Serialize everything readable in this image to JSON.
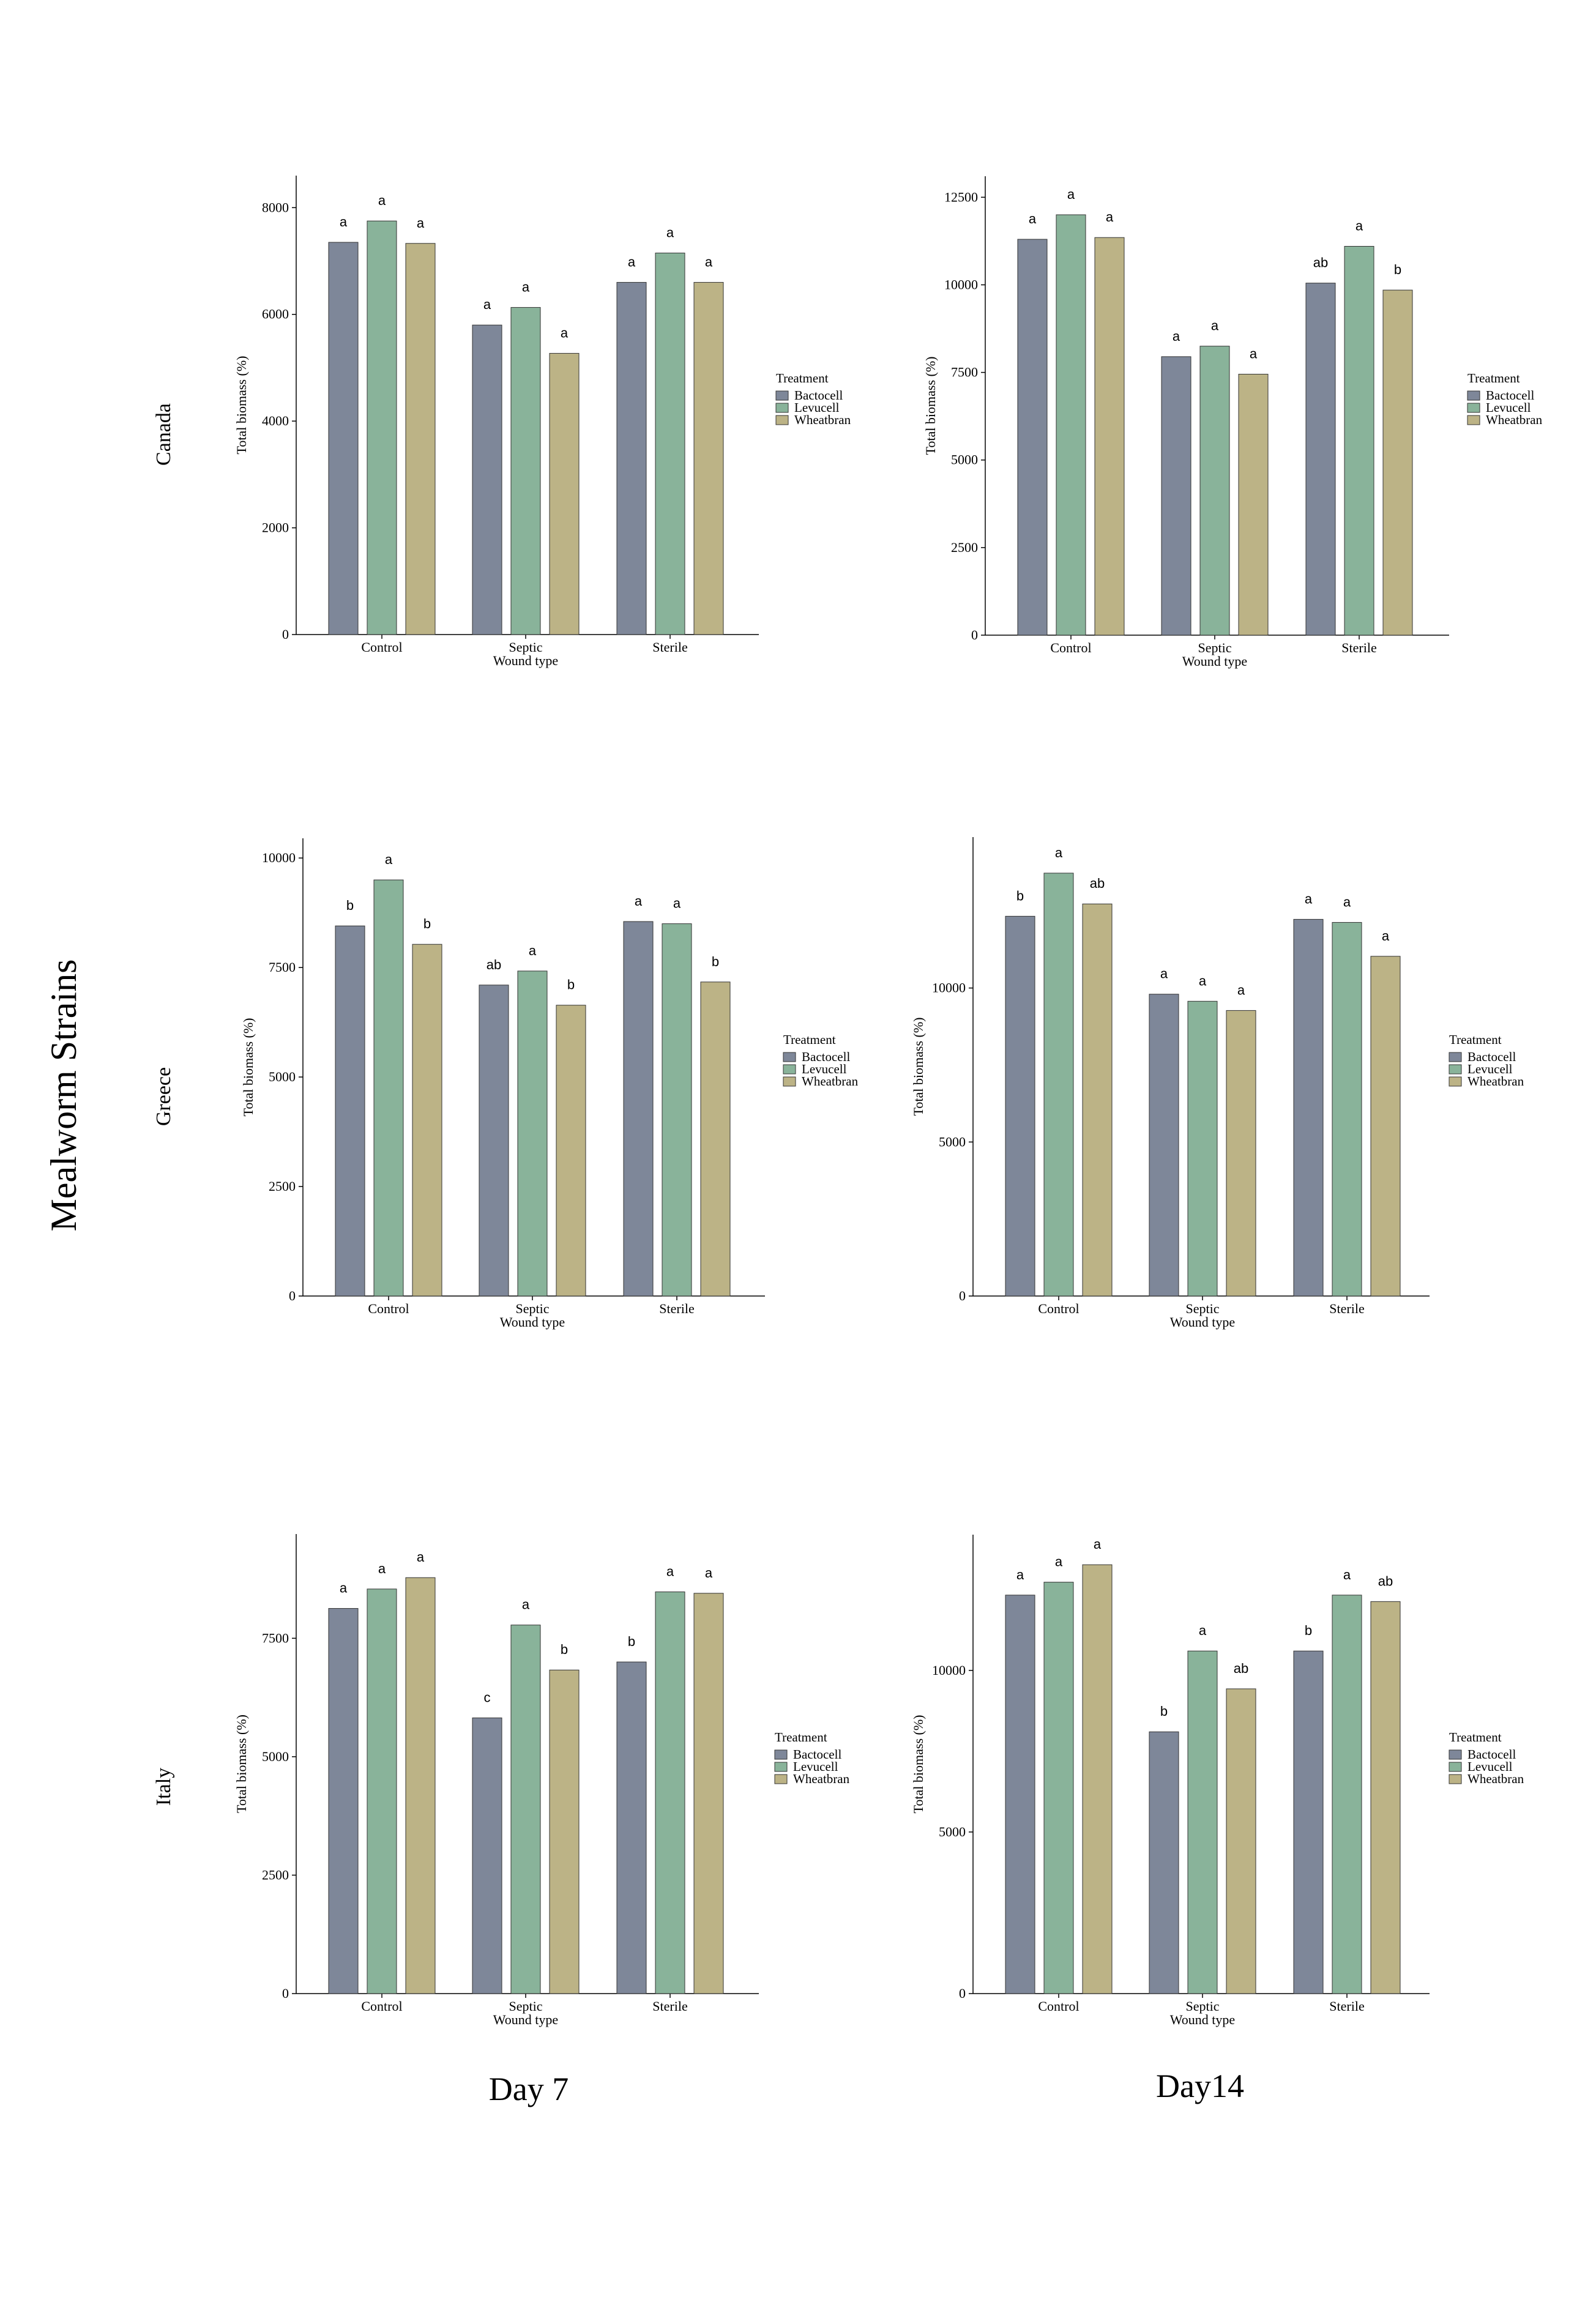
{
  "figure": {
    "y_title": "Mealworm Strains",
    "column_titles": [
      "Day 7",
      "Day14"
    ],
    "row_titles": [
      "Canada",
      "Greece",
      "Italy"
    ]
  },
  "colors": {
    "Bactocell": "#7e8799",
    "Levucell": "#89b39a",
    "Wheatbran": "#bcb386"
  },
  "chart_data": [
    {
      "type": "bar",
      "row": "Canada",
      "column": "Day 7",
      "categories": [
        "Control",
        "Septic",
        "Sterile"
      ],
      "xlabel": "Wound type",
      "ylabel": "Total biomass (%)",
      "ylim": [
        0,
        8600
      ],
      "yticks": [
        0,
        2000,
        4000,
        6000,
        8000
      ],
      "legend_title": "Treatment",
      "series": [
        {
          "name": "Bactocell",
          "values": [
            7350,
            5800,
            6600
          ],
          "letters": [
            "a",
            "a",
            "a"
          ]
        },
        {
          "name": "Levucell",
          "values": [
            7750,
            6130,
            7150
          ],
          "letters": [
            "a",
            "a",
            "a"
          ]
        },
        {
          "name": "Wheatbran",
          "values": [
            7330,
            5270,
            6600
          ],
          "letters": [
            "a",
            "a",
            "a"
          ]
        }
      ]
    },
    {
      "type": "bar",
      "row": "Canada",
      "column": "Day14",
      "categories": [
        "Control",
        "Septic",
        "Sterile"
      ],
      "xlabel": "Wound type",
      "ylabel": "Total biomass (%)",
      "ylim": [
        0,
        13100
      ],
      "yticks": [
        0,
        2500,
        5000,
        7500,
        10000,
        12500
      ],
      "legend_title": "Treatment",
      "series": [
        {
          "name": "Bactocell",
          "values": [
            11300,
            7950,
            10050
          ],
          "letters": [
            "a",
            "a",
            "ab"
          ]
        },
        {
          "name": "Levucell",
          "values": [
            12000,
            8250,
            11100
          ],
          "letters": [
            "a",
            "a",
            "a"
          ]
        },
        {
          "name": "Wheatbran",
          "values": [
            11350,
            7450,
            9850
          ],
          "letters": [
            "a",
            "a",
            "b"
          ]
        }
      ]
    },
    {
      "type": "bar",
      "row": "Greece",
      "column": "Day 7",
      "categories": [
        "Control",
        "Septic",
        "Sterile"
      ],
      "xlabel": "Wound type",
      "ylabel": "Total biomass (%)",
      "ylim": [
        0,
        10450
      ],
      "yticks": [
        0,
        2500,
        5000,
        7500,
        10000
      ],
      "legend_title": "Treatment",
      "series": [
        {
          "name": "Bactocell",
          "values": [
            8450,
            7100,
            8550
          ],
          "letters": [
            "b",
            "ab",
            "a"
          ]
        },
        {
          "name": "Levucell",
          "values": [
            9500,
            7420,
            8500
          ],
          "letters": [
            "a",
            "a",
            "a"
          ]
        },
        {
          "name": "Wheatbran",
          "values": [
            8030,
            6640,
            7170
          ],
          "letters": [
            "b",
            "b",
            "b"
          ]
        }
      ]
    },
    {
      "type": "bar",
      "row": "Greece",
      "column": "Day14",
      "categories": [
        "Control",
        "Septic",
        "Sterile"
      ],
      "xlabel": "Wound type",
      "ylabel": "Total biomass (%)",
      "ylim": [
        0,
        14900
      ],
      "yticks": [
        0,
        5000,
        10000
      ],
      "legend_title": "Treatment",
      "series": [
        {
          "name": "Bactocell",
          "values": [
            12330,
            9800,
            12230
          ],
          "letters": [
            "b",
            "a",
            "a"
          ]
        },
        {
          "name": "Levucell",
          "values": [
            13730,
            9570,
            12130
          ],
          "letters": [
            "a",
            "a",
            "a"
          ]
        },
        {
          "name": "Wheatbran",
          "values": [
            12730,
            9270,
            11030
          ],
          "letters": [
            "ab",
            "a",
            "a"
          ]
        }
      ]
    },
    {
      "type": "bar",
      "row": "Italy",
      "column": "Day 7",
      "categories": [
        "Control",
        "Septic",
        "Sterile"
      ],
      "xlabel": "Wound type",
      "ylabel": "Total biomass (%)",
      "ylim": [
        0,
        9700
      ],
      "yticks": [
        0,
        2500,
        5000,
        7500
      ],
      "legend_title": "Treatment",
      "series": [
        {
          "name": "Bactocell",
          "values": [
            8130,
            5820,
            7000
          ],
          "letters": [
            "a",
            "c",
            "b"
          ]
        },
        {
          "name": "Levucell",
          "values": [
            8540,
            7780,
            8480
          ],
          "letters": [
            "a",
            "a",
            "a"
          ]
        },
        {
          "name": "Wheatbran",
          "values": [
            8780,
            6830,
            8450
          ],
          "letters": [
            "a",
            "b",
            "a"
          ]
        }
      ]
    },
    {
      "type": "bar",
      "row": "Italy",
      "column": "Day14",
      "categories": [
        "Control",
        "Septic",
        "Sterile"
      ],
      "xlabel": "Wound type",
      "ylabel": "Total biomass (%)",
      "ylim": [
        0,
        14200
      ],
      "yticks": [
        0,
        5000,
        10000
      ],
      "legend_title": "Treatment",
      "series": [
        {
          "name": "Bactocell",
          "values": [
            12330,
            8100,
            10600
          ],
          "letters": [
            "a",
            "b",
            "b"
          ]
        },
        {
          "name": "Levucell",
          "values": [
            12730,
            10600,
            12330
          ],
          "letters": [
            "a",
            "a",
            "a"
          ]
        },
        {
          "name": "Wheatbran",
          "values": [
            13270,
            9430,
            12130
          ],
          "letters": [
            "a",
            "ab",
            "ab"
          ]
        }
      ]
    }
  ]
}
